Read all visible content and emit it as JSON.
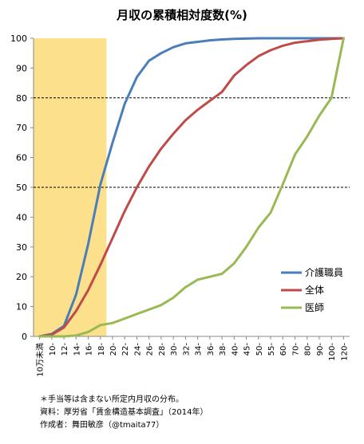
{
  "chart_data": {
    "type": "line",
    "title": "月収の累積相対度数(%)",
    "x": [
      "10万未満",
      "10-",
      "12-",
      "14-",
      "16-",
      "18-",
      "20-",
      "22-",
      "24-",
      "26-",
      "28-",
      "30-",
      "32-",
      "34-",
      "36-",
      "38-",
      "40-",
      "45-",
      "50-",
      "55-",
      "60-",
      "70-",
      "80-",
      "90-",
      "100-",
      "120-"
    ],
    "ylim": [
      0,
      100
    ],
    "yticks": [
      0,
      10,
      20,
      30,
      40,
      50,
      60,
      70,
      80,
      90,
      100
    ],
    "series": [
      {
        "name": "介護職員",
        "color": "#4a7ebb",
        "values": [
          0,
          0.8,
          3.5,
          14,
          31,
          51,
          65,
          78,
          87,
          92.5,
          95,
          97,
          98.3,
          98.8,
          99.3,
          99.6,
          99.8,
          99.9,
          100,
          100,
          100,
          100,
          100,
          100,
          100,
          100
        ]
      },
      {
        "name": "全体",
        "color": "#be4b48",
        "values": [
          0,
          0.6,
          3,
          8.5,
          15.5,
          24,
          33,
          42,
          50,
          57,
          63,
          68,
          72.5,
          76,
          79,
          82,
          87.5,
          91,
          94,
          96,
          97.5,
          98.5,
          99,
          99.5,
          99.8,
          100
        ]
      },
      {
        "name": "医師",
        "color": "#98b954",
        "values": [
          0,
          0,
          0,
          0.3,
          1.5,
          3.8,
          4.5,
          6,
          7.5,
          9,
          10.5,
          13,
          16.5,
          19,
          20,
          21,
          24.5,
          30,
          36.5,
          41.5,
          51,
          61,
          67,
          74,
          80,
          100
        ]
      }
    ],
    "reference_lines": [
      50,
      80
    ],
    "highlight_band": {
      "from": "10万未満",
      "to": "18-",
      "color": "#fde08c"
    },
    "legend": "right"
  },
  "notes": {
    "line1": "＊手当等は含まない所定内月収の分布。",
    "line2": "資料：厚労省「賃金構造基本調査」（2014年）",
    "line3": "作成者：舞田敏彦（@tmaita77）"
  }
}
